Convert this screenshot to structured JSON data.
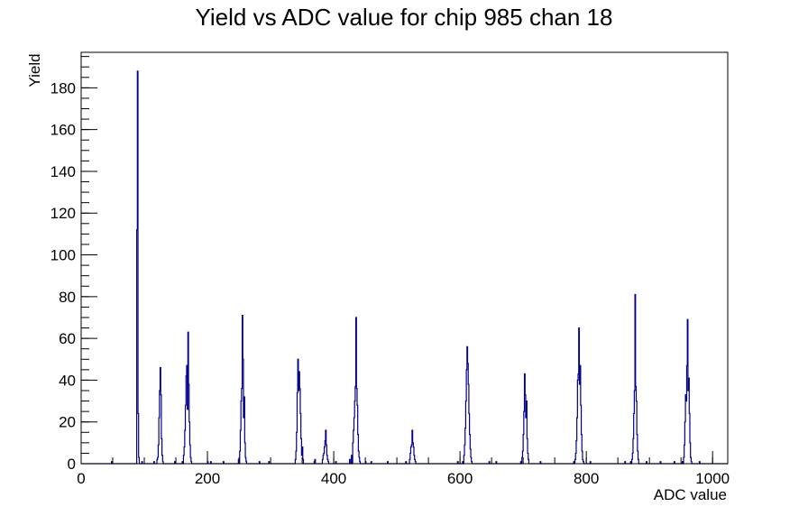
{
  "chart_data": {
    "type": "bar",
    "title": "Yield vs ADC value for chip 985 chan 18",
    "xlabel": "ADC value",
    "ylabel": "Yield",
    "xlim": [
      0,
      1024
    ],
    "ylim": [
      0,
      197
    ],
    "x_major_ticks": [
      0,
      200,
      400,
      600,
      800,
      1000
    ],
    "x_minor_step": 50,
    "y_major_ticks": [
      0,
      20,
      40,
      60,
      80,
      100,
      120,
      140,
      160,
      180
    ],
    "y_minor_step": 5,
    "bin_width": 1,
    "line_color": "#00008b",
    "grid": false,
    "legend": "none",
    "bins": [
      [
        48,
        1
      ],
      [
        88,
        112
      ],
      [
        89,
        188
      ],
      [
        90,
        24
      ],
      [
        91,
        3
      ],
      [
        96,
        1
      ],
      [
        115,
        1
      ],
      [
        120,
        2
      ],
      [
        121,
        3
      ],
      [
        122,
        9
      ],
      [
        123,
        22
      ],
      [
        124,
        35
      ],
      [
        125,
        46
      ],
      [
        126,
        33
      ],
      [
        127,
        12
      ],
      [
        128,
        4
      ],
      [
        129,
        1
      ],
      [
        148,
        1
      ],
      [
        160,
        1
      ],
      [
        162,
        4
      ],
      [
        163,
        8
      ],
      [
        164,
        16
      ],
      [
        165,
        28
      ],
      [
        166,
        42
      ],
      [
        167,
        47
      ],
      [
        168,
        26
      ],
      [
        169,
        63
      ],
      [
        170,
        38
      ],
      [
        171,
        20
      ],
      [
        172,
        9
      ],
      [
        173,
        3
      ],
      [
        174,
        1
      ],
      [
        200,
        1
      ],
      [
        205,
        1
      ],
      [
        225,
        1
      ],
      [
        249,
        2
      ],
      [
        251,
        6
      ],
      [
        252,
        16
      ],
      [
        253,
        30
      ],
      [
        254,
        36
      ],
      [
        255,
        71
      ],
      [
        256,
        50
      ],
      [
        257,
        22
      ],
      [
        258,
        32
      ],
      [
        259,
        10
      ],
      [
        260,
        3
      ],
      [
        261,
        1
      ],
      [
        282,
        1
      ],
      [
        297,
        1
      ],
      [
        339,
        2
      ],
      [
        340,
        6
      ],
      [
        341,
        15
      ],
      [
        342,
        34
      ],
      [
        343,
        50
      ],
      [
        344,
        35
      ],
      [
        345,
        44
      ],
      [
        346,
        36
      ],
      [
        347,
        24
      ],
      [
        348,
        12
      ],
      [
        349,
        4
      ],
      [
        350,
        8
      ],
      [
        351,
        2
      ],
      [
        369,
        1
      ],
      [
        370,
        2
      ],
      [
        382,
        2
      ],
      [
        383,
        4
      ],
      [
        384,
        5
      ],
      [
        385,
        8
      ],
      [
        386,
        11
      ],
      [
        387,
        16
      ],
      [
        388,
        9
      ],
      [
        389,
        4
      ],
      [
        390,
        2
      ],
      [
        391,
        1
      ],
      [
        403,
        1
      ],
      [
        425,
        2
      ],
      [
        428,
        4
      ],
      [
        430,
        10
      ],
      [
        431,
        16
      ],
      [
        432,
        22
      ],
      [
        433,
        30
      ],
      [
        434,
        37
      ],
      [
        435,
        70
      ],
      [
        436,
        36
      ],
      [
        437,
        28
      ],
      [
        438,
        14
      ],
      [
        439,
        6
      ],
      [
        440,
        3
      ],
      [
        441,
        1
      ],
      [
        450,
        1
      ],
      [
        459,
        1
      ],
      [
        485,
        1
      ],
      [
        514,
        1
      ],
      [
        520,
        2
      ],
      [
        521,
        5
      ],
      [
        522,
        8
      ],
      [
        523,
        9
      ],
      [
        524,
        16
      ],
      [
        525,
        10
      ],
      [
        526,
        8
      ],
      [
        527,
        4
      ],
      [
        528,
        2
      ],
      [
        529,
        1
      ],
      [
        596,
        1
      ],
      [
        604,
        1
      ],
      [
        606,
        4
      ],
      [
        607,
        9
      ],
      [
        608,
        17
      ],
      [
        609,
        30
      ],
      [
        610,
        45
      ],
      [
        611,
        56
      ],
      [
        612,
        48
      ],
      [
        613,
        38
      ],
      [
        614,
        24
      ],
      [
        615,
        14
      ],
      [
        616,
        7
      ],
      [
        617,
        3
      ],
      [
        618,
        1
      ],
      [
        646,
        1
      ],
      [
        657,
        1
      ],
      [
        696,
        1
      ],
      [
        698,
        3
      ],
      [
        699,
        6
      ],
      [
        700,
        14
      ],
      [
        701,
        25
      ],
      [
        702,
        43
      ],
      [
        703,
        33
      ],
      [
        704,
        22
      ],
      [
        705,
        30
      ],
      [
        706,
        12
      ],
      [
        707,
        5
      ],
      [
        708,
        2
      ],
      [
        727,
        1
      ],
      [
        780,
        1
      ],
      [
        782,
        2
      ],
      [
        783,
        5
      ],
      [
        784,
        11
      ],
      [
        785,
        22
      ],
      [
        786,
        40
      ],
      [
        787,
        43
      ],
      [
        788,
        65
      ],
      [
        789,
        38
      ],
      [
        790,
        47
      ],
      [
        791,
        28
      ],
      [
        792,
        14
      ],
      [
        793,
        6
      ],
      [
        794,
        2
      ],
      [
        795,
        1
      ],
      [
        806,
        1
      ],
      [
        861,
        1
      ],
      [
        870,
        1
      ],
      [
        872,
        2
      ],
      [
        873,
        5
      ],
      [
        874,
        12
      ],
      [
        875,
        24
      ],
      [
        876,
        35
      ],
      [
        877,
        81
      ],
      [
        878,
        37
      ],
      [
        879,
        30
      ],
      [
        880,
        14
      ],
      [
        881,
        6
      ],
      [
        882,
        2
      ],
      [
        895,
        1
      ],
      [
        917,
        1
      ],
      [
        939,
        1
      ],
      [
        952,
        1
      ],
      [
        954,
        3
      ],
      [
        955,
        9
      ],
      [
        956,
        20
      ],
      [
        957,
        33
      ],
      [
        958,
        30
      ],
      [
        959,
        47
      ],
      [
        960,
        69
      ],
      [
        961,
        35
      ],
      [
        962,
        41
      ],
      [
        963,
        24
      ],
      [
        964,
        10
      ],
      [
        965,
        3
      ],
      [
        966,
        1
      ],
      [
        979,
        1
      ]
    ]
  }
}
